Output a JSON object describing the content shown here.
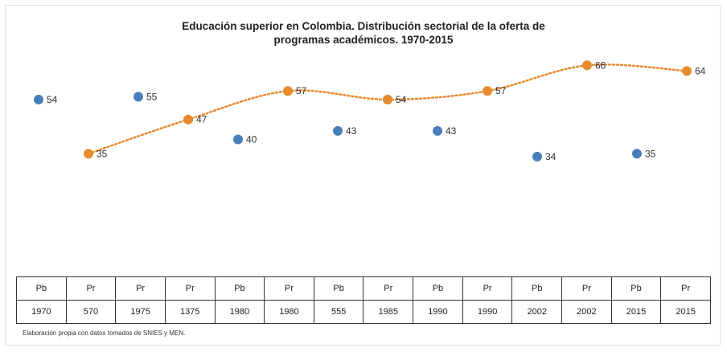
{
  "chart_data": {
    "type": "scatter",
    "title_line1": "Educación superior en Colombia. Distribución sectorial de la oferta de",
    "title_line2": "programas académicos. 1970-2015",
    "categories": [
      {
        "sector": "Pb",
        "year": "1970"
      },
      {
        "sector": "Pr",
        "year": "570"
      },
      {
        "sector": "Pr",
        "year": "1975"
      },
      {
        "sector": "Pr",
        "year": "1375"
      },
      {
        "sector": "Pb",
        "year": "1980"
      },
      {
        "sector": "Pr",
        "year": "1980"
      },
      {
        "sector": "Pb",
        "year": "555"
      },
      {
        "sector": "Pr",
        "year": "1985"
      },
      {
        "sector": "Pb",
        "year": "1990"
      },
      {
        "sector": "Pr",
        "year": "1990"
      },
      {
        "sector": "Pb",
        "year": "2002"
      },
      {
        "sector": "Pr",
        "year": "2002"
      },
      {
        "sector": "Pb",
        "year": "2015"
      },
      {
        "sector": "Pr",
        "year": "2015"
      }
    ],
    "series": [
      {
        "color": "#4a7ebb",
        "values": [
          54,
          null,
          55,
          null,
          40,
          null,
          43,
          null,
          43,
          null,
          34,
          null,
          35,
          null
        ],
        "labels": [
          "54",
          "",
          "55",
          "",
          "40",
          "",
          "43",
          "",
          "43",
          "",
          "34",
          "",
          "35",
          ""
        ]
      },
      {
        "color": "#e88a2e",
        "values": [
          null,
          35,
          null,
          47,
          null,
          57,
          null,
          54,
          null,
          57,
          null,
          66,
          null,
          64
        ],
        "labels": [
          "",
          "35",
          "",
          "47",
          "",
          "57",
          "",
          "54",
          "",
          "57",
          "",
          "66",
          "",
          "64"
        ]
      }
    ],
    "trendline": {
      "color": "#e88a2e",
      "style": "dotted"
    },
    "ylim": [
      10,
      72
    ],
    "grid": false,
    "legend": "none"
  },
  "source_note": "Elaboración propia con datos tomados de SNIES y MEN."
}
